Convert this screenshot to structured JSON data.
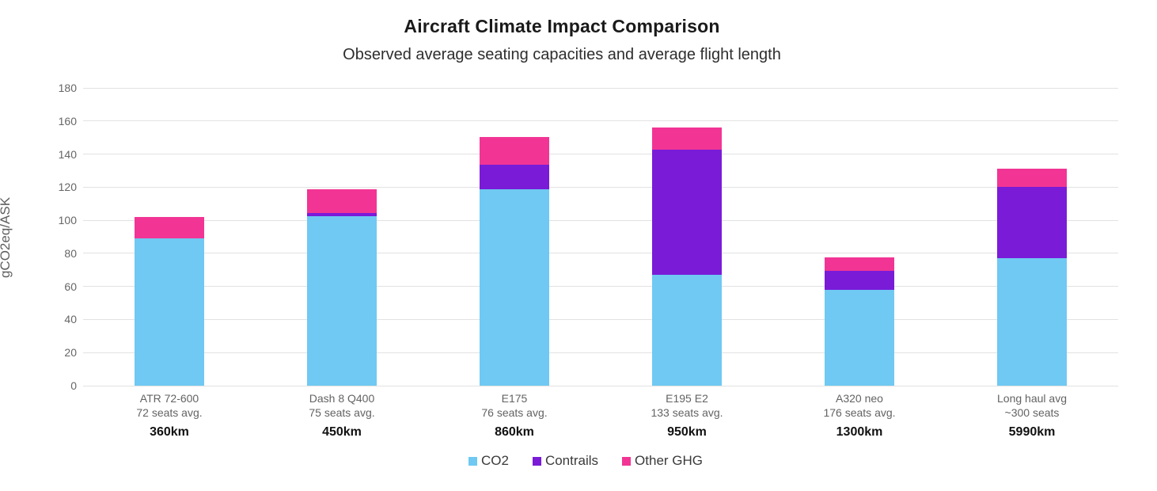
{
  "chart_data": {
    "type": "bar",
    "stacked": true,
    "title": "Aircraft Climate Impact Comparison",
    "subtitle": "Observed average seating capacities and average flight length",
    "xlabel": "",
    "ylabel": "gCO2eq/ASK",
    "ylim": [
      0,
      180
    ],
    "ytick_step": 20,
    "grid": true,
    "legend_position": "bottom",
    "categories": [
      {
        "name": "ATR 72-600",
        "seats": "72 seats avg.",
        "distance": "360km"
      },
      {
        "name": "Dash 8 Q400",
        "seats": "75 seats avg.",
        "distance": "450km"
      },
      {
        "name": "E175",
        "seats": "76 seats avg.",
        "distance": "860km"
      },
      {
        "name": "E195 E2",
        "seats": "133 seats avg.",
        "distance": "950km"
      },
      {
        "name": "A320 neo",
        "seats": "176 seats avg.",
        "distance": "1300km"
      },
      {
        "name": "Long haul avg",
        "seats": "~300 seats",
        "distance": "5990km"
      }
    ],
    "series": [
      {
        "name": "CO2",
        "color": "#6FC9F2",
        "values": [
          89,
          102.5,
          118.5,
          67,
          58,
          77
        ]
      },
      {
        "name": "Contrails",
        "color": "#7A1BD8",
        "values": [
          0,
          2,
          15,
          75.5,
          11.5,
          43
        ]
      },
      {
        "name": "Other GHG",
        "color": "#F23594",
        "values": [
          13,
          14,
          17,
          13.5,
          8,
          11
        ]
      }
    ]
  },
  "styles": {
    "gridline_color": "#e2e2e2",
    "tick_label_color": "#666666",
    "axis_title_color": "#5f5f5f",
    "distance_label_color": "#111111",
    "background": "#ffffff"
  }
}
